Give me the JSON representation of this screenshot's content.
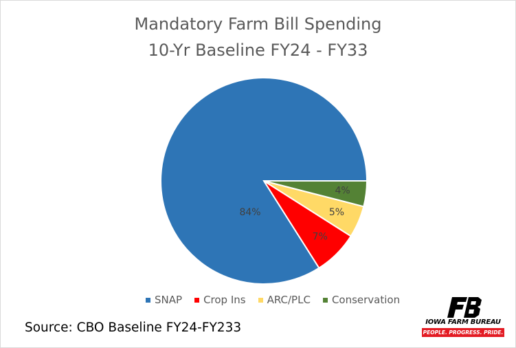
{
  "chart_data": {
    "type": "pie",
    "title": "Mandatory Farm Bill Spending",
    "subtitle": "10-Yr Baseline FY24 - FY33",
    "slices": [
      {
        "label": "SNAP",
        "value": 84,
        "value_label": "84%",
        "color": "#2e75b6"
      },
      {
        "label": "Crop Ins",
        "value": 7,
        "value_label": "7%",
        "color": "#ff0000"
      },
      {
        "label": "ARC/PLC",
        "value": 5,
        "value_label": "5%",
        "color": "#ffd966"
      },
      {
        "label": "Conservation",
        "value": 4,
        "value_label": "4%",
        "color": "#548235"
      }
    ],
    "legend_position": "bottom"
  },
  "source": "Source: CBO Baseline FY24-FY233",
  "logo": {
    "name": "IOWA FARM BUREAU",
    "tagline": "PEOPLE. PROGRESS. PRIDE.",
    "brand_color": "#e31b23"
  }
}
